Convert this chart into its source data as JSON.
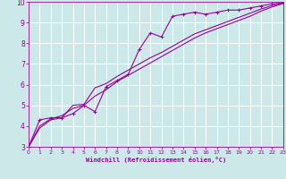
{
  "xlabel": "Windchill (Refroidissement éolien,°C)",
  "bg_color": "#cce8e8",
  "grid_color": "#ffffff",
  "line_color": "#990099",
  "xlim": [
    0,
    23
  ],
  "ylim": [
    3,
    10
  ],
  "xticks": [
    0,
    1,
    2,
    3,
    4,
    5,
    6,
    7,
    8,
    9,
    10,
    11,
    12,
    13,
    14,
    15,
    16,
    17,
    18,
    19,
    20,
    21,
    22,
    23
  ],
  "yticks": [
    3,
    4,
    5,
    6,
    7,
    8,
    9,
    10
  ],
  "line1_x": [
    0,
    1,
    2,
    3,
    4,
    5,
    6,
    7,
    8,
    9,
    10,
    11,
    12,
    13,
    14,
    15,
    16,
    17,
    18,
    19,
    20,
    21,
    22,
    23
  ],
  "line1_y": [
    3.0,
    4.3,
    4.4,
    4.4,
    4.6,
    5.0,
    4.7,
    5.9,
    6.2,
    6.5,
    7.7,
    8.5,
    8.3,
    9.3,
    9.4,
    9.5,
    9.4,
    9.5,
    9.6,
    9.6,
    9.7,
    9.8,
    9.9,
    9.95
  ],
  "line2_x": [
    0,
    1,
    2,
    3,
    4,
    5,
    6,
    7,
    8,
    9,
    10,
    11,
    12,
    13,
    14,
    15,
    16,
    17,
    18,
    19,
    20,
    21,
    22,
    23
  ],
  "line2_y": [
    3.0,
    4.0,
    4.35,
    4.5,
    4.85,
    5.0,
    5.45,
    5.75,
    6.15,
    6.45,
    6.75,
    7.05,
    7.35,
    7.65,
    7.95,
    8.25,
    8.5,
    8.7,
    8.9,
    9.1,
    9.3,
    9.55,
    9.75,
    9.92
  ],
  "line3_x": [
    0,
    1,
    2,
    3,
    4,
    5,
    6,
    7,
    8,
    9,
    10,
    11,
    12,
    13,
    14,
    15,
    16,
    17,
    18,
    19,
    20,
    21,
    22,
    23
  ],
  "line3_y": [
    3.0,
    3.9,
    4.3,
    4.4,
    5.0,
    5.05,
    5.85,
    6.05,
    6.4,
    6.7,
    7.0,
    7.3,
    7.55,
    7.85,
    8.15,
    8.45,
    8.65,
    8.85,
    9.05,
    9.25,
    9.45,
    9.65,
    9.82,
    9.93
  ]
}
